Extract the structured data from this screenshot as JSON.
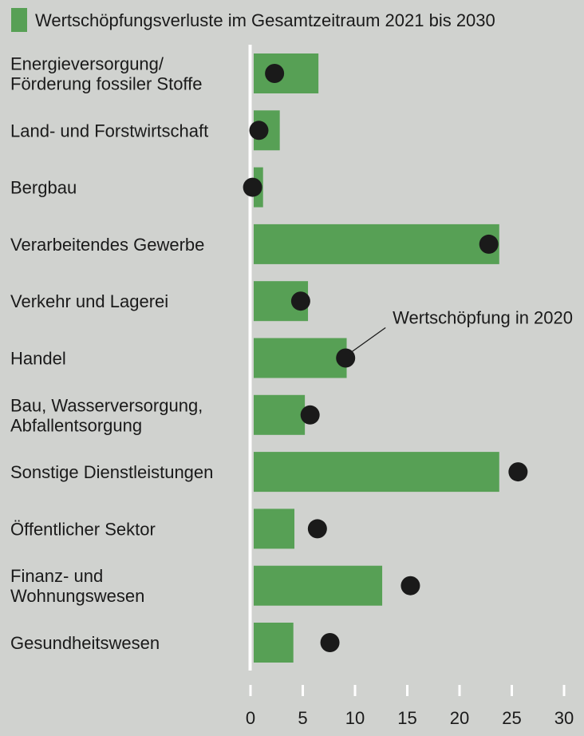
{
  "chart_data": {
    "type": "bar",
    "categories": [
      [
        "Energieversorgung/",
        "Förderung fossiler Stoffe"
      ],
      [
        "Land- und Forstwirtschaft"
      ],
      [
        "Bergbau"
      ],
      [
        "Verarbeitendes Gewerbe"
      ],
      [
        "Verkehr und Lagerei"
      ],
      [
        "Handel"
      ],
      [
        "Bau, Wasserversorgung,",
        "Abfallentsorgung"
      ],
      [
        "Sonstige Dienstleistungen"
      ],
      [
        "Öffentlicher Sektor"
      ],
      [
        "Finanz- und",
        "Wohnungswesen"
      ],
      [
        "Gesundheitswesen"
      ]
    ],
    "series": [
      {
        "name": "Wertschöpfungsverluste im Gesamtzeitraum 2021 bis 2030",
        "kind": "bar",
        "color": "#57a055",
        "values": [
          6.5,
          2.8,
          1.2,
          23.8,
          5.5,
          9.2,
          5.2,
          23.8,
          4.2,
          12.6,
          4.1
        ]
      },
      {
        "name": "Wertschöpfung in 2020",
        "kind": "dot",
        "color": "#1a1a1a",
        "values": [
          2.3,
          0.8,
          0.2,
          22.8,
          4.8,
          9.1,
          5.7,
          25.6,
          6.4,
          15.3,
          7.6
        ]
      }
    ],
    "annotation": {
      "text": "Wertschöpfung in 2020",
      "category_index": 5
    },
    "legend": {
      "label": "Wertschöpfungsverluste im Gesamtzeitraum 2021 bis 2030",
      "position": "top-left"
    },
    "xlim": [
      0,
      30
    ],
    "xticks": [
      0,
      5,
      10,
      15,
      20,
      25,
      30
    ],
    "title": "",
    "xlabel": "",
    "ylabel": "",
    "grid": false
  }
}
